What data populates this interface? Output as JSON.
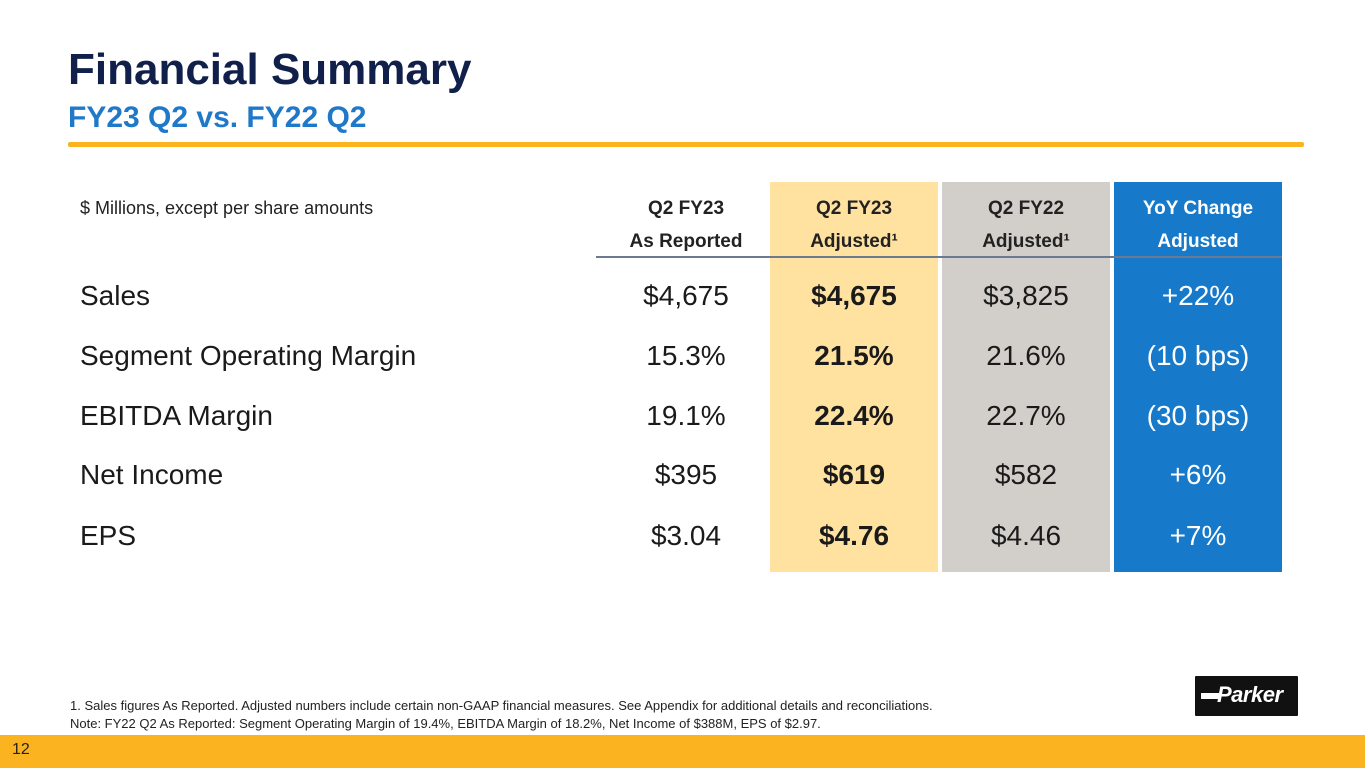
{
  "slide": {
    "title": "Financial Summary",
    "subtitle": "FY23 Q2 vs. FY22 Q2",
    "page_number": "12"
  },
  "table": {
    "units_note": "$ Millions, except per share amounts",
    "columns": [
      {
        "line1": "Q2 FY23",
        "line2": "As Reported"
      },
      {
        "line1": "Q2 FY23",
        "line2": "Adjusted¹"
      },
      {
        "line1": "Q2 FY22",
        "line2": "Adjusted¹"
      },
      {
        "line1": "YoY Change",
        "line2": "Adjusted"
      }
    ],
    "rows": [
      {
        "metric": "Sales",
        "reported": "$4,675",
        "adjusted": "$4,675",
        "prior_adjusted": "$3,825",
        "yoy": "+22%"
      },
      {
        "metric": "Segment Operating Margin",
        "reported": "15.3%",
        "adjusted": "21.5%",
        "prior_adjusted": "21.6%",
        "yoy": "(10 bps)"
      },
      {
        "metric": "EBITDA Margin",
        "reported": "19.1%",
        "adjusted": "22.4%",
        "prior_adjusted": "22.7%",
        "yoy": "(30 bps)"
      },
      {
        "metric": "Net Income",
        "reported": "$395",
        "adjusted": "$619",
        "prior_adjusted": "$582",
        "yoy": "+6%"
      },
      {
        "metric": "EPS",
        "reported": "$3.04",
        "adjusted": "$4.76",
        "prior_adjusted": "$4.46",
        "yoy": "+7%"
      }
    ]
  },
  "footnotes": [
    "1. Sales figures As Reported. Adjusted numbers include certain non-GAAP financial measures. See Appendix for additional details and reconciliations.",
    "Note: FY22 Q2 As Reported: Segment Operating Margin of 19.4%, EBITDA Margin of 18.2%, Net Income of $388M, EPS of $2.97."
  ],
  "logo": {
    "text": "Parker"
  },
  "colors": {
    "title": "#10204a",
    "subtitle": "#1f78c8",
    "accent_gold": "#fbb420",
    "adjusted_column": "#ffe2a0",
    "prior_column": "#d2cfca",
    "yoy_column": "#1779c9"
  }
}
